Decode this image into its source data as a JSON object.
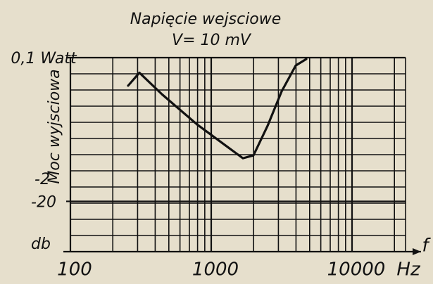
{
  "chart_data": {
    "type": "line",
    "title": "Napięcie wejsciowe",
    "subtitle": "V= 10 mV",
    "y_label": "Moc wyjsciowa",
    "y_unit": "db",
    "x_label": "f",
    "x_unit": "Hz",
    "annotation": "-2",
    "log_x": true,
    "xlim": [
      100,
      24000
    ],
    "xticks": [
      100,
      1000,
      10000
    ],
    "ylim": [
      -27,
      0
    ],
    "yticks": [
      {
        "value": 0,
        "label": "0,1 Watt"
      },
      -20
    ],
    "grid": true,
    "color": "#111111",
    "x": [
      257,
      309,
      447,
      794,
      1259,
      1679,
      1995,
      2512,
      3162,
      3981,
      4732
    ],
    "values": [
      -3.9,
      -2.1,
      -5.1,
      -9.3,
      -12.2,
      -14.0,
      -13.6,
      -9.5,
      -4.7,
      -1.1,
      -0.2
    ]
  }
}
